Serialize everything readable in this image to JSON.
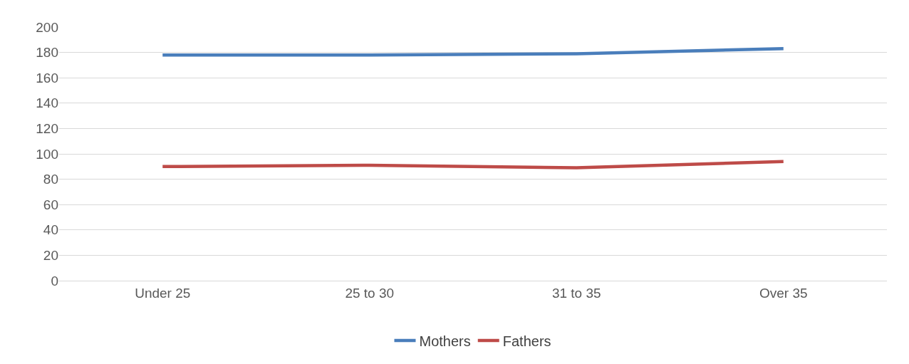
{
  "chart_data": {
    "type": "line",
    "categories": [
      "Under 25",
      "25 to 30",
      "31 to 35",
      "Over 35"
    ],
    "series": [
      {
        "name": "Mothers",
        "color": "#4a7ebb",
        "values": [
          178,
          178,
          179,
          183
        ]
      },
      {
        "name": "Fathers",
        "color": "#be4b48",
        "values": [
          90,
          91,
          89,
          94
        ]
      }
    ],
    "ylim": [
      0,
      200
    ],
    "yticks": [
      0,
      20,
      40,
      60,
      80,
      100,
      120,
      140,
      160,
      180,
      200
    ],
    "grid": "y",
    "legend": "bottom",
    "marker": "none",
    "line_style": "solid"
  }
}
